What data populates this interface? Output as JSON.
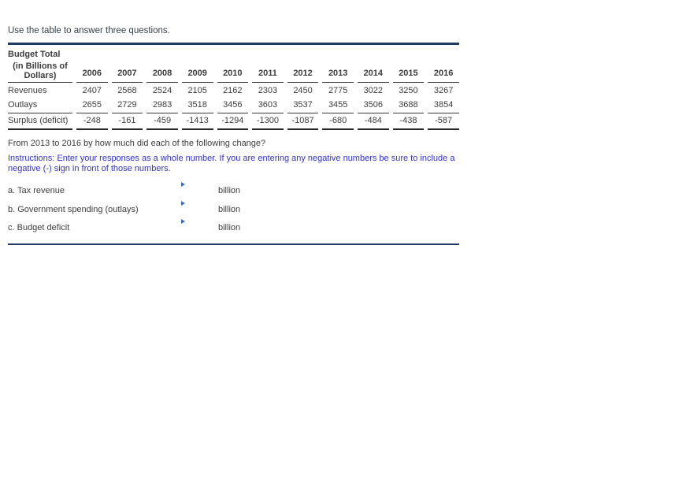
{
  "page": {
    "title": "Use the table to answer three questions."
  },
  "table": {
    "header_title": "Budget Total",
    "header_subtitle": "(in Billions of Dollars)",
    "years": [
      "2006",
      "2007",
      "2008",
      "2009",
      "2010",
      "2011",
      "2012",
      "2013",
      "2014",
      "2015",
      "2016"
    ],
    "rows": [
      {
        "label": "Revenues",
        "values": [
          "2407",
          "2568",
          "2524",
          "2105",
          "2162",
          "2303",
          "2450",
          "2775",
          "3022",
          "3250",
          "3267"
        ]
      },
      {
        "label": "Outlays",
        "values": [
          "2655",
          "2729",
          "2983",
          "3518",
          "3456",
          "3603",
          "3537",
          "3455",
          "3506",
          "3688",
          "3854"
        ]
      },
      {
        "label": "Surplus (deficit)",
        "values": [
          "-248",
          "-161",
          "-459",
          "-1413",
          "-1294",
          "-1300",
          "-1087",
          "-680",
          "-484",
          "-438",
          "-587"
        ]
      }
    ]
  },
  "question": {
    "prompt": "From 2013 to 2016 by how much did each of the following change?",
    "instructions": "Instructions: Enter your responses as a whole number. If you are entering any negative numbers be sure to include a negative (-) sign in front of those numbers.",
    "items": [
      {
        "label": "a. Tax revenue",
        "value": "",
        "unit": "billion"
      },
      {
        "label": "b. Government spending (outlays)",
        "value": "",
        "unit": "billion"
      },
      {
        "label": "c. Budget deficit",
        "value": "",
        "unit": "billion"
      }
    ]
  },
  "colors": {
    "rule_navy": "#1f3864",
    "instructions_blue": "#3333cc",
    "marker_blue": "#3c6eb4",
    "text_gray": "#3d3d3d"
  },
  "icons": {
    "answer_marker": "right-triangle-icon"
  }
}
